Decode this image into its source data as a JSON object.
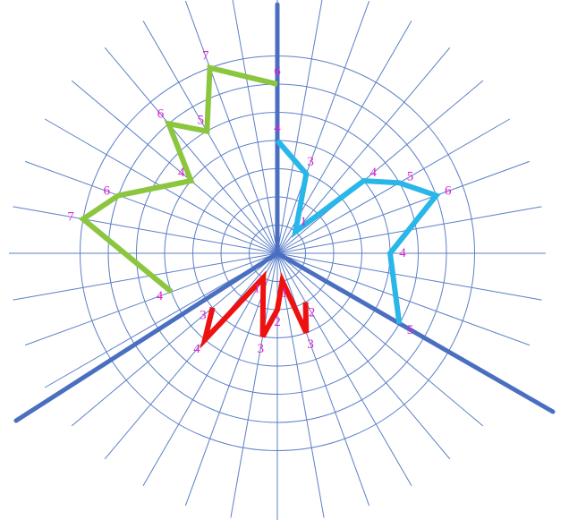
{
  "colors": {
    "grid": "#5b7fc7",
    "axes": "#4a6fc1",
    "green": "#8cc63f",
    "cyan": "#29b6e8",
    "red": "#ee1111",
    "labels": "#e020d0"
  },
  "grid": {
    "rings": 7,
    "spokes": 36
  },
  "paths": {
    "green": {
      "points": [
        {
          "ring": 6,
          "angle": 90
        },
        {
          "ring": 7,
          "angle": 110
        },
        {
          "ring": 5,
          "angle": 120
        },
        {
          "ring": 6,
          "angle": 130
        },
        {
          "ring": 4,
          "angle": 140
        },
        {
          "ring": 6,
          "angle": 160
        },
        {
          "ring": 7,
          "angle": 170
        },
        {
          "ring": 4,
          "angle": 200
        }
      ],
      "labels": [
        "6",
        "7",
        "5",
        "6",
        "4",
        "6",
        "7",
        "4"
      ]
    },
    "cyan": {
      "points": [
        {
          "ring": 4,
          "angle": 90
        },
        {
          "ring": 3,
          "angle": 70
        },
        {
          "ring": 1,
          "angle": 50
        },
        {
          "ring": 4,
          "angle": 40
        },
        {
          "ring": 5,
          "angle": 30
        },
        {
          "ring": 6,
          "angle": 20
        },
        {
          "ring": 4,
          "angle": 0
        },
        {
          "ring": 5,
          "angle": -30
        }
      ],
      "labels": [
        "4",
        "3",
        "1",
        "4",
        "5",
        "6",
        "4",
        "5"
      ]
    },
    "red": {
      "points": [
        {
          "ring": 3,
          "angle": 220
        },
        {
          "ring": 4,
          "angle": 230
        },
        {
          "ring": 1,
          "angle": 240
        },
        {
          "ring": 3,
          "angle": 260
        },
        {
          "ring": 2,
          "angle": 270
        },
        {
          "ring": 1,
          "angle": 280
        },
        {
          "ring": 3,
          "angle": 290
        },
        {
          "ring": 2,
          "angle": 300
        }
      ],
      "labels": [
        "3",
        "4",
        "1",
        "3",
        "2",
        "1",
        "3",
        "2"
      ]
    }
  }
}
